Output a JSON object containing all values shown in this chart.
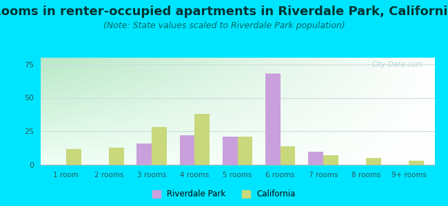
{
  "categories": [
    "1 room",
    "2 rooms",
    "3 rooms",
    "4 rooms",
    "5 rooms",
    "6 rooms",
    "7 rooms",
    "8 rooms",
    "9+ rooms"
  ],
  "riverdale_park": [
    0,
    0,
    16,
    22,
    21,
    68,
    10,
    0,
    0
  ],
  "california": [
    12,
    13,
    28,
    38,
    21,
    14,
    7,
    5,
    3
  ],
  "riverdale_color": "#c9a0dc",
  "california_color": "#c8d87a",
  "title": "Rooms in renter-occupied apartments in Riverdale Park, California",
  "subtitle": "(Note: State values scaled to Riverdale Park population)",
  "title_fontsize": 13,
  "subtitle_fontsize": 9,
  "ylim": [
    0,
    80
  ],
  "yticks": [
    0,
    25,
    50,
    75
  ],
  "bar_width": 0.35,
  "background_outer": "#00e5ff",
  "legend_labels": [
    "Riverdale Park",
    "California"
  ],
  "watermark": "City-Data.com",
  "gradient_left": "#b8e8c8",
  "gradient_right": "#f0f8f0",
  "gradient_top": "#ffffff",
  "gradient_bottom": "#d0ecd8"
}
